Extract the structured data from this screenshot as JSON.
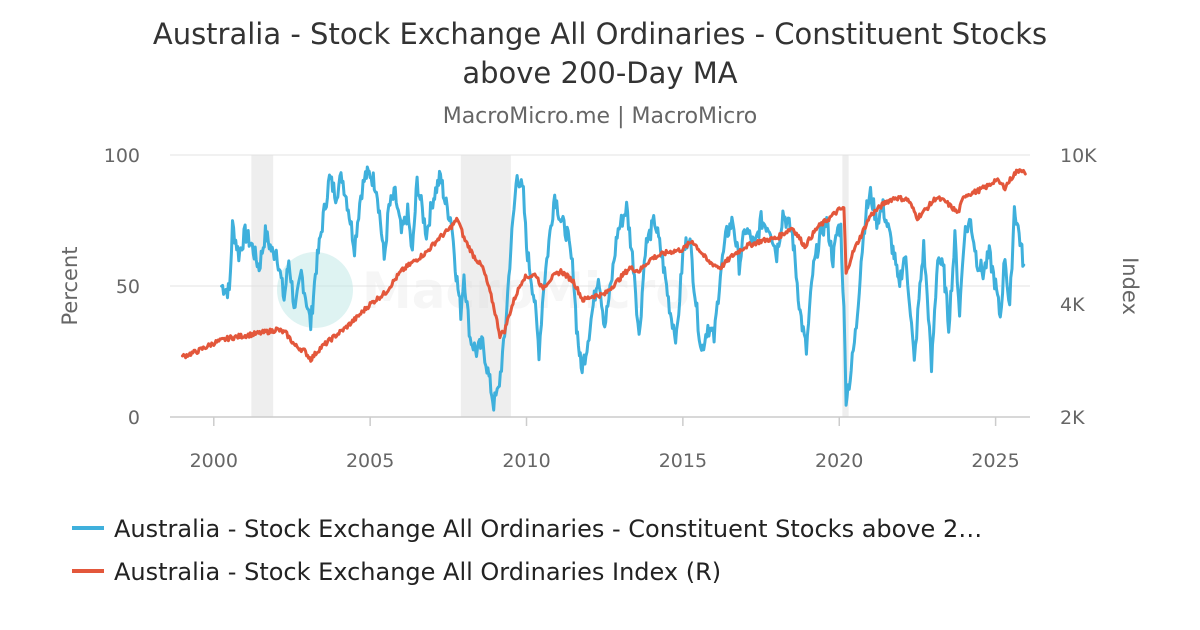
{
  "chart_data": {
    "type": "line",
    "title_line1": "Australia - Stock Exchange All Ordinaries - Constituent Stocks",
    "title_line2": "above 200-Day MA",
    "subtitle": "MacroMicro.me | MacroMicro",
    "watermark": "MacroMicro",
    "y_left": {
      "label": "Percent",
      "range": [
        0,
        100
      ],
      "ticks": [
        0,
        50,
        100
      ],
      "tick_labels": [
        "0",
        "50",
        "100"
      ]
    },
    "y_right": {
      "label": "Index",
      "scale": "log",
      "range": [
        2000,
        10000
      ],
      "ticks": [
        2000,
        4000,
        10000
      ],
      "tick_labels": [
        "2K",
        "4K",
        "10K"
      ]
    },
    "x": {
      "range": [
        1998.6,
        2026.1
      ],
      "ticks": [
        2000,
        2005,
        2010,
        2015,
        2020,
        2025
      ],
      "tick_labels": [
        "2000",
        "2005",
        "2010",
        "2015",
        "2020",
        "2025"
      ]
    },
    "shaded_periods": [
      [
        2001.2,
        2001.9
      ],
      [
        2007.9,
        2009.5
      ],
      [
        2020.1,
        2020.3
      ]
    ],
    "series": [
      {
        "name": "Australia - Stock Exchange All Ordinaries - Constituent Stocks above 2…",
        "axis": "left",
        "color": "#3fb0dc",
        "points": [
          [
            2000.25,
            50
          ],
          [
            2000.5,
            48
          ],
          [
            2000.6,
            73
          ],
          [
            2000.8,
            62
          ],
          [
            2001.0,
            70
          ],
          [
            2001.2,
            66
          ],
          [
            2001.45,
            57
          ],
          [
            2001.65,
            70
          ],
          [
            2001.9,
            62
          ],
          [
            2002.0,
            64
          ],
          [
            2002.25,
            45
          ],
          [
            2002.4,
            60
          ],
          [
            2002.6,
            40
          ],
          [
            2002.8,
            55
          ],
          [
            2003.0,
            42
          ],
          [
            2003.1,
            35
          ],
          [
            2003.25,
            55
          ],
          [
            2003.5,
            76
          ],
          [
            2003.7,
            91
          ],
          [
            2003.9,
            85
          ],
          [
            2004.1,
            92
          ],
          [
            2004.3,
            80
          ],
          [
            2004.5,
            65
          ],
          [
            2004.7,
            85
          ],
          [
            2004.85,
            92
          ],
          [
            2005.0,
            93
          ],
          [
            2005.2,
            88
          ],
          [
            2005.3,
            78
          ],
          [
            2005.45,
            60
          ],
          [
            2005.6,
            80
          ],
          [
            2005.8,
            85
          ],
          [
            2006.0,
            70
          ],
          [
            2006.2,
            78
          ],
          [
            2006.35,
            62
          ],
          [
            2006.5,
            90
          ],
          [
            2006.8,
            70
          ],
          [
            2007.0,
            83
          ],
          [
            2007.25,
            92
          ],
          [
            2007.4,
            82
          ],
          [
            2007.6,
            75
          ],
          [
            2007.75,
            55
          ],
          [
            2007.9,
            40
          ],
          [
            2008.0,
            55
          ],
          [
            2008.2,
            30
          ],
          [
            2008.4,
            25
          ],
          [
            2008.6,
            28
          ],
          [
            2008.8,
            15
          ],
          [
            2008.95,
            5
          ],
          [
            2009.1,
            10
          ],
          [
            2009.3,
            30
          ],
          [
            2009.5,
            65
          ],
          [
            2009.7,
            93
          ],
          [
            2009.9,
            85
          ],
          [
            2010.0,
            65
          ],
          [
            2010.25,
            45
          ],
          [
            2010.4,
            25
          ],
          [
            2010.55,
            50
          ],
          [
            2010.75,
            70
          ],
          [
            2010.9,
            85
          ],
          [
            2011.1,
            75
          ],
          [
            2011.3,
            70
          ],
          [
            2011.5,
            55
          ],
          [
            2011.6,
            35
          ],
          [
            2011.75,
            18
          ],
          [
            2011.9,
            25
          ],
          [
            2012.1,
            40
          ],
          [
            2012.3,
            55
          ],
          [
            2012.5,
            35
          ],
          [
            2012.7,
            50
          ],
          [
            2012.9,
            70
          ],
          [
            2013.2,
            80
          ],
          [
            2013.45,
            55
          ],
          [
            2013.6,
            30
          ],
          [
            2013.8,
            65
          ],
          [
            2014.1,
            75
          ],
          [
            2014.35,
            60
          ],
          [
            2014.6,
            40
          ],
          [
            2014.8,
            30
          ],
          [
            2015.0,
            62
          ],
          [
            2015.2,
            70
          ],
          [
            2015.45,
            40
          ],
          [
            2015.6,
            25
          ],
          [
            2015.8,
            35
          ],
          [
            2016.0,
            30
          ],
          [
            2016.2,
            55
          ],
          [
            2016.4,
            70
          ],
          [
            2016.6,
            75
          ],
          [
            2016.8,
            58
          ],
          [
            2017.0,
            72
          ],
          [
            2017.3,
            65
          ],
          [
            2017.5,
            75
          ],
          [
            2017.8,
            72
          ],
          [
            2018.0,
            62
          ],
          [
            2018.2,
            78
          ],
          [
            2018.5,
            70
          ],
          [
            2018.75,
            40
          ],
          [
            2018.95,
            25
          ],
          [
            2019.15,
            55
          ],
          [
            2019.4,
            70
          ],
          [
            2019.6,
            75
          ],
          [
            2019.8,
            60
          ],
          [
            2019.95,
            72
          ],
          [
            2020.05,
            72
          ],
          [
            2020.15,
            40
          ],
          [
            2020.22,
            8
          ],
          [
            2020.35,
            15
          ],
          [
            2020.55,
            35
          ],
          [
            2020.7,
            60
          ],
          [
            2020.85,
            78
          ],
          [
            2021.0,
            85
          ],
          [
            2021.2,
            75
          ],
          [
            2021.4,
            80
          ],
          [
            2021.6,
            70
          ],
          [
            2021.75,
            62
          ],
          [
            2021.9,
            50
          ],
          [
            2022.1,
            62
          ],
          [
            2022.25,
            45
          ],
          [
            2022.4,
            20
          ],
          [
            2022.55,
            45
          ],
          [
            2022.7,
            65
          ],
          [
            2022.85,
            40
          ],
          [
            2022.95,
            18
          ],
          [
            2023.15,
            62
          ],
          [
            2023.35,
            55
          ],
          [
            2023.5,
            35
          ],
          [
            2023.7,
            68
          ],
          [
            2023.85,
            40
          ],
          [
            2024.0,
            70
          ],
          [
            2024.2,
            75
          ],
          [
            2024.4,
            60
          ],
          [
            2024.6,
            55
          ],
          [
            2024.8,
            62
          ],
          [
            2025.0,
            50
          ],
          [
            2025.15,
            38
          ],
          [
            2025.3,
            62
          ],
          [
            2025.45,
            40
          ],
          [
            2025.6,
            80
          ],
          [
            2025.75,
            70
          ],
          [
            2025.9,
            58
          ]
        ]
      },
      {
        "name": "Australia - Stock Exchange All Ordinaries Index (R)",
        "axis": "right",
        "color": "#e3573b",
        "points": [
          [
            1999.0,
            2900
          ],
          [
            1999.5,
            3000
          ],
          [
            2000.0,
            3150
          ],
          [
            2000.5,
            3250
          ],
          [
            2001.0,
            3300
          ],
          [
            2001.5,
            3350
          ],
          [
            2001.9,
            3400
          ],
          [
            2002.0,
            3430
          ],
          [
            2002.3,
            3350
          ],
          [
            2002.6,
            3100
          ],
          [
            2002.9,
            3000
          ],
          [
            2003.1,
            2850
          ],
          [
            2003.4,
            3050
          ],
          [
            2003.8,
            3250
          ],
          [
            2004.2,
            3450
          ],
          [
            2004.6,
            3700
          ],
          [
            2005.0,
            4000
          ],
          [
            2005.5,
            4300
          ],
          [
            2006.0,
            4900
          ],
          [
            2006.4,
            5200
          ],
          [
            2006.8,
            5500
          ],
          [
            2007.2,
            6000
          ],
          [
            2007.5,
            6300
          ],
          [
            2007.8,
            6750
          ],
          [
            2008.0,
            6000
          ],
          [
            2008.3,
            5400
          ],
          [
            2008.6,
            5000
          ],
          [
            2008.9,
            4100
          ],
          [
            2009.15,
            3300
          ],
          [
            2009.3,
            3400
          ],
          [
            2009.6,
            4100
          ],
          [
            2009.9,
            4700
          ],
          [
            2010.3,
            4800
          ],
          [
            2010.5,
            4400
          ],
          [
            2010.8,
            4700
          ],
          [
            2011.1,
            4900
          ],
          [
            2011.5,
            4600
          ],
          [
            2011.8,
            4100
          ],
          [
            2012.1,
            4200
          ],
          [
            2012.5,
            4250
          ],
          [
            2012.9,
            4600
          ],
          [
            2013.3,
            5000
          ],
          [
            2013.6,
            4900
          ],
          [
            2014.0,
            5300
          ],
          [
            2014.5,
            5500
          ],
          [
            2015.0,
            5600
          ],
          [
            2015.3,
            5900
          ],
          [
            2015.8,
            5200
          ],
          [
            2016.2,
            5000
          ],
          [
            2016.6,
            5400
          ],
          [
            2017.0,
            5700
          ],
          [
            2017.5,
            5900
          ],
          [
            2018.0,
            6000
          ],
          [
            2018.5,
            6400
          ],
          [
            2018.9,
            5700
          ],
          [
            2019.3,
            6400
          ],
          [
            2019.7,
            6800
          ],
          [
            2020.0,
            7150
          ],
          [
            2020.15,
            7200
          ],
          [
            2020.22,
            4800
          ],
          [
            2020.4,
            5400
          ],
          [
            2020.7,
            6100
          ],
          [
            2021.0,
            6900
          ],
          [
            2021.5,
            7500
          ],
          [
            2021.8,
            7700
          ],
          [
            2022.2,
            7600
          ],
          [
            2022.5,
            6800
          ],
          [
            2022.8,
            7200
          ],
          [
            2023.1,
            7700
          ],
          [
            2023.4,
            7500
          ],
          [
            2023.8,
            7000
          ],
          [
            2024.0,
            7800
          ],
          [
            2024.4,
            8000
          ],
          [
            2024.8,
            8300
          ],
          [
            2025.0,
            8600
          ],
          [
            2025.3,
            8200
          ],
          [
            2025.6,
            8900
          ],
          [
            2025.8,
            9200
          ],
          [
            2025.95,
            8900
          ]
        ]
      }
    ],
    "legend": [
      {
        "label": "Australia - Stock Exchange All Ordinaries - Constituent Stocks above 2…",
        "color": "#3fb0dc"
      },
      {
        "label": "Australia - Stock Exchange All Ordinaries Index (R)",
        "color": "#e3573b"
      }
    ]
  }
}
